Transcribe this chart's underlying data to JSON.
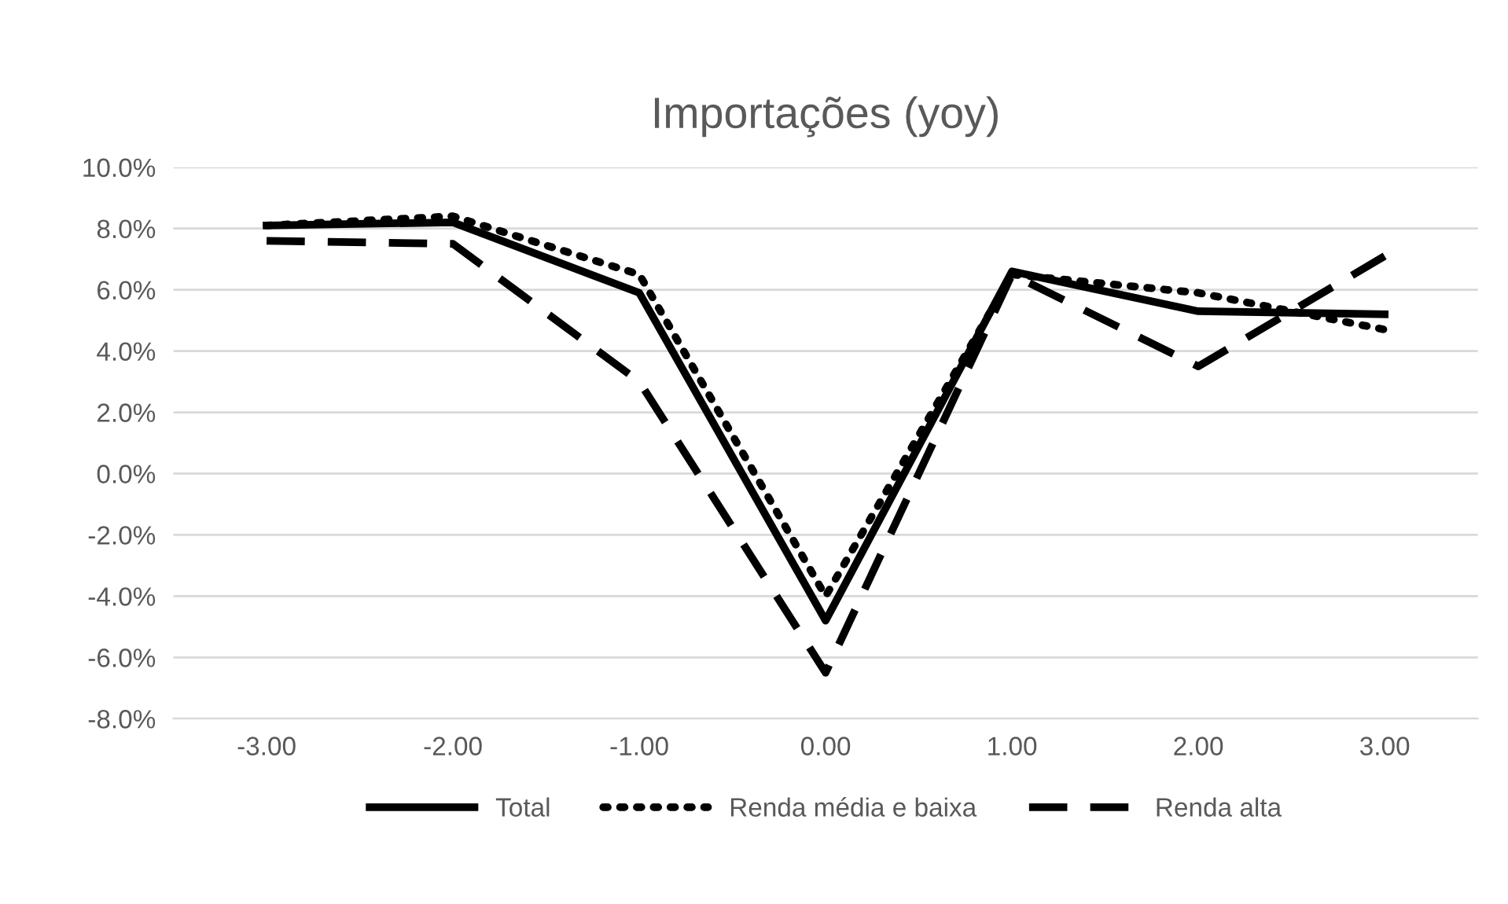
{
  "chart_data": {
    "type": "line",
    "title": "Importações (yoy)",
    "x": [
      -3,
      -2,
      -1,
      0,
      1,
      2,
      3
    ],
    "series": [
      {
        "name": "Total",
        "color": "#000000",
        "line_style": "solid",
        "values": [
          8.1,
          8.2,
          5.9,
          -4.8,
          6.6,
          5.3,
          5.2
        ]
      },
      {
        "name": "Renda média e baixa",
        "color": "#000000",
        "line_style": "dotted",
        "values": [
          8.1,
          8.4,
          6.5,
          -4.0,
          6.5,
          5.9,
          4.7
        ]
      },
      {
        "name": "Renda alta",
        "color": "#000000",
        "line_style": "dashed",
        "values": [
          7.6,
          7.5,
          3.0,
          -6.5,
          6.5,
          3.5,
          7.1
        ]
      }
    ],
    "xlim": [
      -3.5,
      3.5
    ],
    "xticks": [
      {
        "value": -3,
        "label": "-3.00"
      },
      {
        "value": -2,
        "label": "-2.00"
      },
      {
        "value": -1,
        "label": "-1.00"
      },
      {
        "value": 0,
        "label": "0.00"
      },
      {
        "value": 1,
        "label": "1.00"
      },
      {
        "value": 2,
        "label": "2.00"
      },
      {
        "value": 3,
        "label": "3.00"
      }
    ],
    "ylim": [
      -8,
      10
    ],
    "yticks": [
      {
        "value": -8,
        "label": "-8.0%"
      },
      {
        "value": -6,
        "label": "-6.0%"
      },
      {
        "value": -4,
        "label": "-4.0%"
      },
      {
        "value": -2,
        "label": "-2.0%"
      },
      {
        "value": 0,
        "label": "0.0%"
      },
      {
        "value": 2,
        "label": "2.0%"
      },
      {
        "value": 4,
        "label": "4.0%"
      },
      {
        "value": 6,
        "label": "6.0%"
      },
      {
        "value": 8,
        "label": "8.0%"
      },
      {
        "value": 10,
        "label": "10.0%"
      }
    ],
    "grid": "y",
    "legend": "bottom",
    "marker": "none"
  }
}
